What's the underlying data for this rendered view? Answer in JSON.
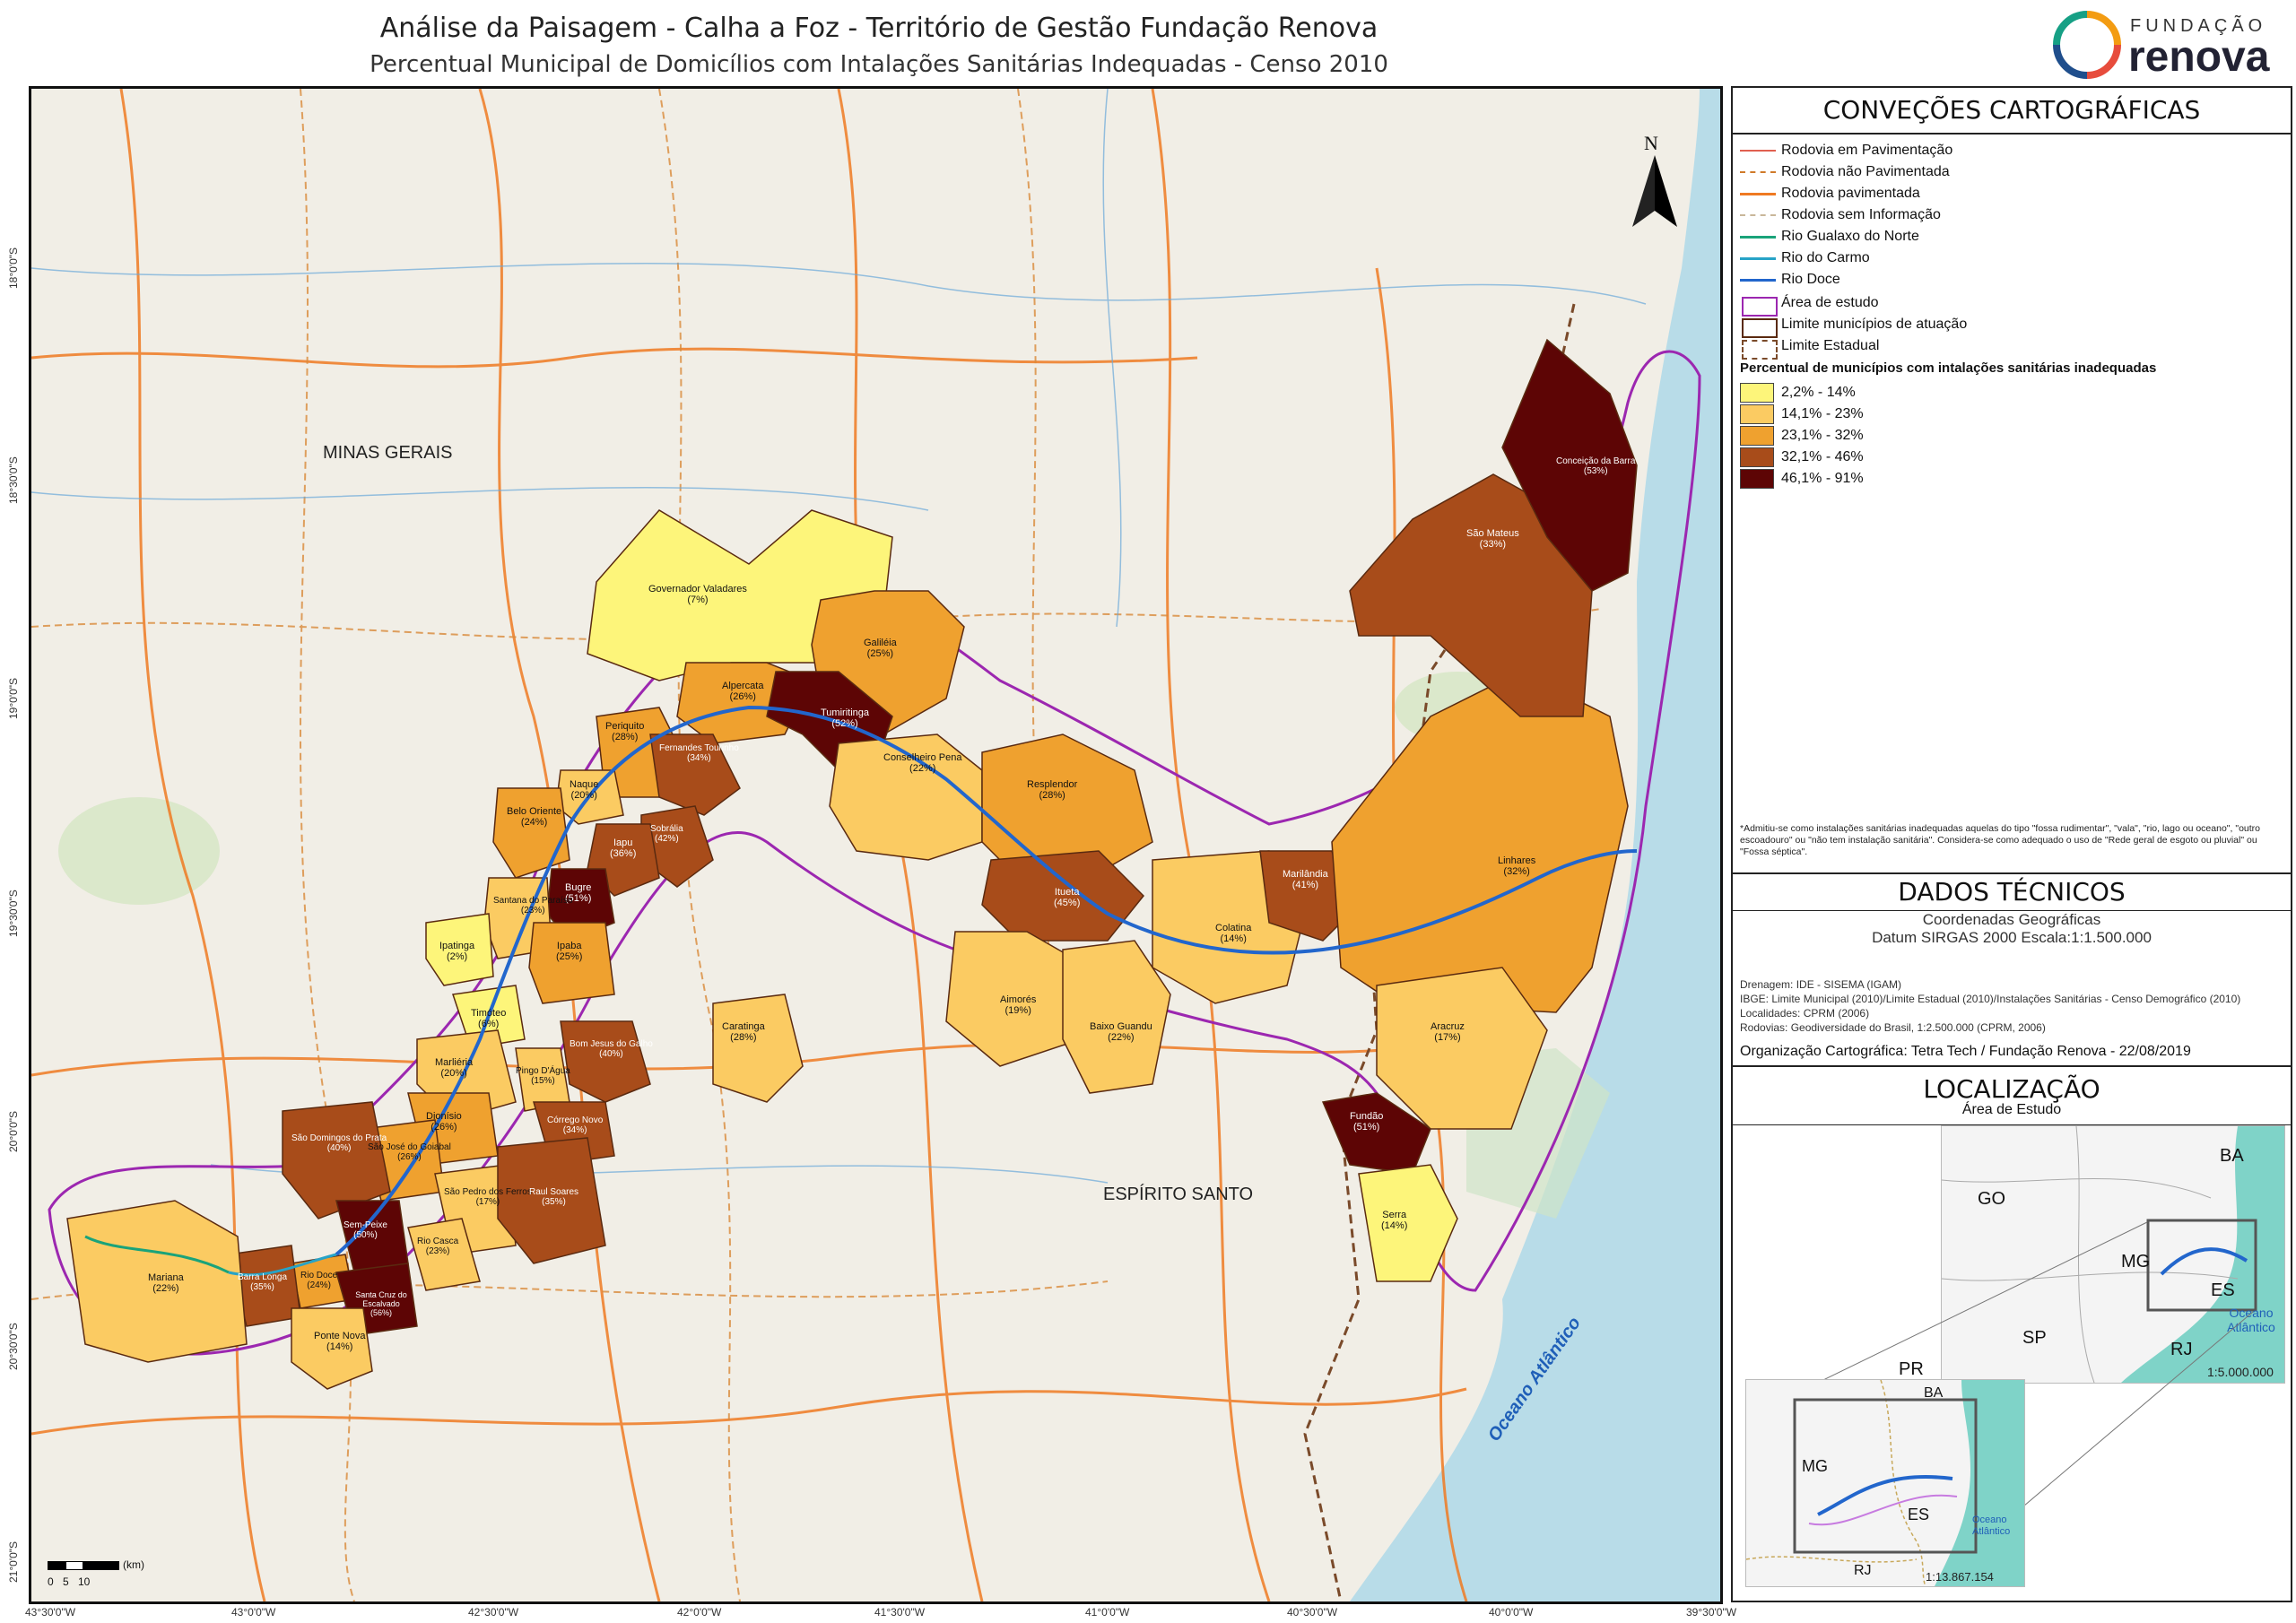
{
  "title": "Análise da Paisagem - Calha a Foz - Território de Gestão Fundação Renova",
  "subtitle": "Percentual Municipal de Domicílios com Intalações Sanitárias Indequadas - Censo 2010",
  "logo": {
    "top": "FUNDAÇÃO",
    "main": "renova"
  },
  "map": {
    "north": "N",
    "states": [
      "MINAS GERAIS",
      "ESPÍRITO SANTO"
    ],
    "ocean": "Oceano Atlântico",
    "scale_unit": "(km)",
    "scale_ticks": [
      "0",
      "5",
      "10"
    ],
    "lon_ticks": [
      "43°30'0\"W",
      "43°0'0\"W",
      "42°30'0\"W",
      "42°0'0\"W",
      "41°30'0\"W",
      "41°0'0\"W",
      "40°30'0\"W",
      "40°0'0\"W",
      "39°30'0\"W"
    ],
    "lat_ticks": [
      "18°0'0\"S",
      "18°30'0\"S",
      "19°0'0\"S",
      "19°30'0\"S",
      "20°0'0\"S",
      "20°30'0\"S",
      "21°0'0\"S"
    ],
    "municipalities": [
      {
        "name": "Governador Valadares",
        "pct": "7%",
        "cls": 0
      },
      {
        "name": "Galiléia",
        "pct": "25%",
        "cls": 2
      },
      {
        "name": "Alpercata",
        "pct": "26%",
        "cls": 2
      },
      {
        "name": "Tumiritinga",
        "pct": "52%",
        "cls": 4
      },
      {
        "name": "Conselheiro Pena",
        "pct": "22%",
        "cls": 1
      },
      {
        "name": "Periquito",
        "pct": "28%",
        "cls": 2
      },
      {
        "name": "Fernandes Tourinho",
        "pct": "34%",
        "cls": 3
      },
      {
        "name": "Sobrália",
        "pct": "42%",
        "cls": 3
      },
      {
        "name": "Naque",
        "pct": "20%",
        "cls": 1
      },
      {
        "name": "Iapu",
        "pct": "36%",
        "cls": 3
      },
      {
        "name": "Belo Oriente",
        "pct": "24%",
        "cls": 2
      },
      {
        "name": "Bugre",
        "pct": "51%",
        "cls": 4
      },
      {
        "name": "Santana do Paraíso",
        "pct": "23%",
        "cls": 1
      },
      {
        "name": "Ipaba",
        "pct": "25%",
        "cls": 2
      },
      {
        "name": "Ipatinga",
        "pct": "2%",
        "cls": 0
      },
      {
        "name": "Timóteo",
        "pct": "6%",
        "cls": 0
      },
      {
        "name": "Resplendor",
        "pct": "28%",
        "cls": 2
      },
      {
        "name": "Itueta",
        "pct": "45%",
        "cls": 3
      },
      {
        "name": "Aimorés",
        "pct": "19%",
        "cls": 1
      },
      {
        "name": "Baixo Guandu",
        "pct": "22%",
        "cls": 1
      },
      {
        "name": "Colatina",
        "pct": "14%",
        "cls": 0
      },
      {
        "name": "Marilândia",
        "pct": "41%",
        "cls": 3
      },
      {
        "name": "Linhares",
        "pct": "32%",
        "cls": 2
      },
      {
        "name": "São Mateus",
        "pct": "33%",
        "cls": 3
      },
      {
        "name": "Conceição da Barra",
        "pct": "53%",
        "cls": 4
      },
      {
        "name": "Aracruz",
        "pct": "17%",
        "cls": 1
      },
      {
        "name": "Fundão",
        "pct": "51%",
        "cls": 4
      },
      {
        "name": "Serra",
        "pct": "14%",
        "cls": 0
      },
      {
        "name": "Caratinga",
        "pct": "28%",
        "cls": 2
      },
      {
        "name": "Marliéria",
        "pct": "20%",
        "cls": 1
      },
      {
        "name": "Pingo D'Água",
        "pct": "15%",
        "cls": 1
      },
      {
        "name": "Bom Jesus do Galho",
        "pct": "40%",
        "cls": 3
      },
      {
        "name": "Córrego Novo",
        "pct": "34%",
        "cls": 3
      },
      {
        "name": "Dionísio",
        "pct": "26%",
        "cls": 2
      },
      {
        "name": "São José do Goiabal",
        "pct": "26%",
        "cls": 2
      },
      {
        "name": "São Domingos do Prata",
        "pct": "40%",
        "cls": 3
      },
      {
        "name": "São Pedro dos Ferros",
        "pct": "17%",
        "cls": 1
      },
      {
        "name": "Raul Soares",
        "pct": "35%",
        "cls": 3
      },
      {
        "name": "Rio Casca",
        "pct": "23%",
        "cls": 1
      },
      {
        "name": "Sem-Peixe",
        "pct": "50%",
        "cls": 4
      },
      {
        "name": "Rio Doce",
        "pct": "24%",
        "cls": 2
      },
      {
        "name": "Santa Cruz do Escalvado",
        "pct": "56%",
        "cls": 4
      },
      {
        "name": "Barra Longa",
        "pct": "35%",
        "cls": 3
      },
      {
        "name": "Mariana",
        "pct": "22%",
        "cls": 1
      },
      {
        "name": "Ponte Nova",
        "pct": "14%",
        "cls": 0
      }
    ]
  },
  "legend": {
    "heading": "CONVEÇÕES CARTOGRÁFICAS",
    "lines": [
      {
        "label": "Rodovia em Pavimentação",
        "color": "#e06050",
        "style": "solid"
      },
      {
        "label": "Rodovia não Pavimentada",
        "color": "#d07a2a",
        "style": "dashed"
      },
      {
        "label": "Rodovia pavimentada",
        "color": "#ef7a22",
        "style": "solid"
      },
      {
        "label": "Rodovia sem Informação",
        "color": "#c9b79a",
        "style": "dashed"
      },
      {
        "label": "Rio Gualaxo do Norte",
        "color": "#1aa37a",
        "style": "solid"
      },
      {
        "label": "Rio do Carmo",
        "color": "#27a3c7",
        "style": "solid"
      },
      {
        "label": "Rio Doce",
        "color": "#2266cc",
        "style": "solid"
      }
    ],
    "areas": [
      {
        "label": "Área de estudo",
        "color": "#9c27b0",
        "style": "solid"
      },
      {
        "label": "Limite municípios de atuação",
        "color": "#5a2a10",
        "style": "solid"
      },
      {
        "label": "Limite Estadual",
        "color": "#7a4a2a",
        "style": "dashed"
      }
    ],
    "class_title": "Percentual de municípios com intalações sanitárias inadequadas",
    "classes": [
      {
        "label": "2,2% - 14%",
        "color": "#fdf57a"
      },
      {
        "label": "14,1% - 23%",
        "color": "#fbcb62"
      },
      {
        "label": "23,1% - 32%",
        "color": "#efa12f"
      },
      {
        "label": "32,1% - 46%",
        "color": "#a84c1a"
      },
      {
        "label": "46,1% - 91%",
        "color": "#5d0505"
      }
    ],
    "note": "*Admitiu-se como instalações sanitárias inadequadas aquelas do tipo \"fossa rudimentar\", \"vala\", \"rio, lago ou oceano\", \"outro escoadouro\" ou \"não tem instalação sanitária\". Considera-se como adequado o uso de \"Rede geral de esgoto ou pluvial\" ou \"Fossa séptica\"."
  },
  "technical": {
    "heading": "DADOS TÉCNICOS",
    "coord_line1": "Coordenadas Geográficas",
    "coord_line2": "Datum SIRGAS 2000   Escala:1:1.500.000",
    "sources": [
      "Drenagem: IDE - SISEMA (IGAM)",
      "IBGE: Limite Municipal (2010)/Limite Estadual (2010)/Instalações Sanitárias -  Censo Demográfico (2010)",
      "Localidades: CPRM (2006)",
      "Rodovias: Geodiversidade do Brasil, 1:2.500.000 (CPRM, 2006)"
    ],
    "org_label": "Organização Cartográfica:",
    "org_value": "Tetra Tech / Fundação Renova - 22/08/2019"
  },
  "location": {
    "heading": "LOCALIZAÇÃO",
    "subheading": "Área de Estudo",
    "inset1_labels": [
      "BA",
      "GO",
      "MG",
      "ES",
      "SP",
      "RJ",
      "PR",
      "Oceano Atlântico"
    ],
    "inset1_scale": "1:5.000.000",
    "inset2_labels": [
      "BA",
      "MG",
      "ES",
      "RJ",
      "Oceano Atlântico"
    ],
    "inset2_scale": "1:13.867.154"
  }
}
